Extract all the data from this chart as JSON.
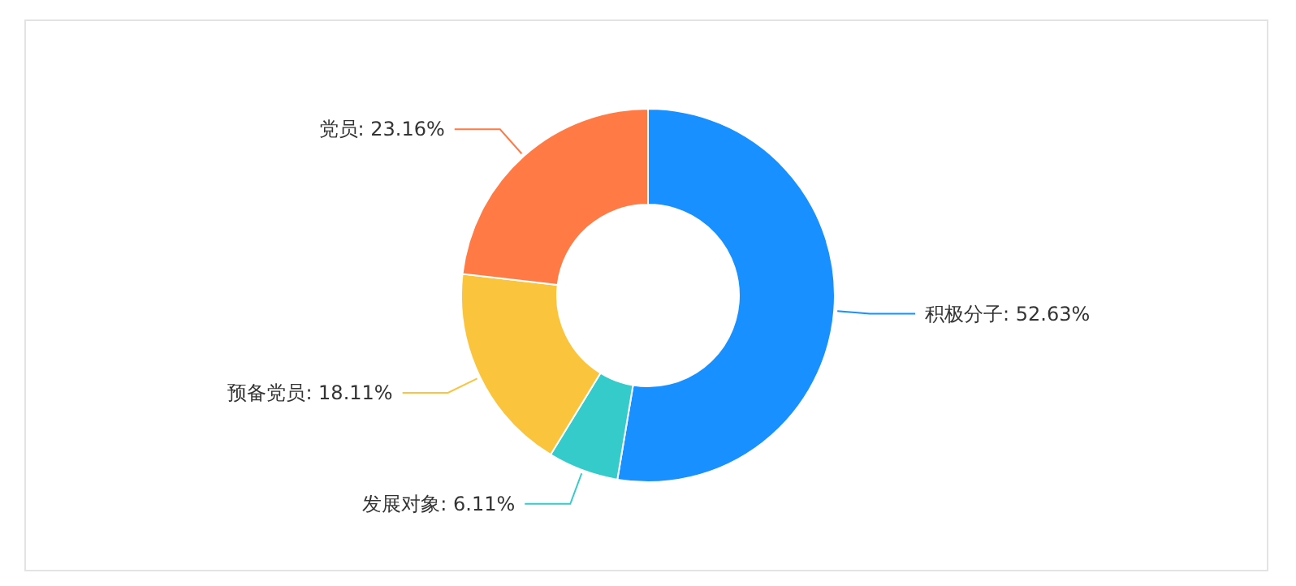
{
  "chart_data": {
    "type": "donut",
    "categories": [
      "积极分子",
      "发展对象",
      "预备党员",
      "党员"
    ],
    "values": [
      52.63,
      6.11,
      18.11,
      23.16
    ],
    "colors": [
      "#1890ff",
      "#36cbcb",
      "#fbc43d",
      "#ff7a45"
    ],
    "value_labels": [
      ": 52.63%",
      ": 6.11%",
      ": 18.11%",
      ": 23.16%"
    ]
  }
}
